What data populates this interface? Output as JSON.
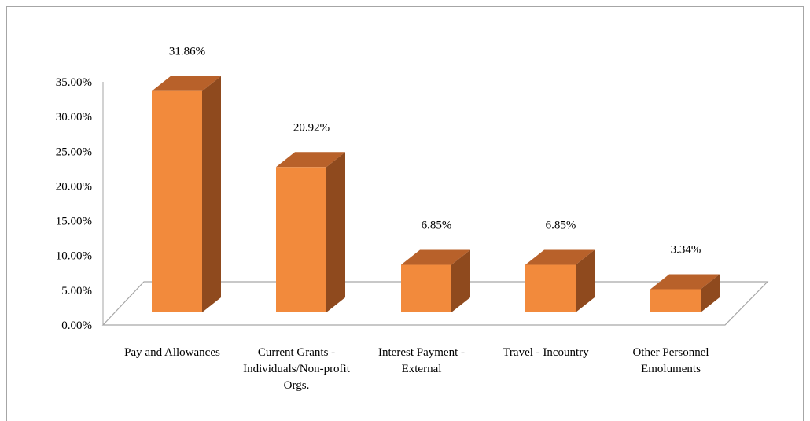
{
  "chart_data": {
    "type": "bar",
    "title": "",
    "xlabel": "",
    "ylabel": "",
    "ylim": [
      0,
      35
    ],
    "y_ticks": [
      "0.00%",
      "5.00%",
      "10.00%",
      "15.00%",
      "20.00%",
      "25.00%",
      "30.00%",
      "35.00%"
    ],
    "categories": [
      [
        "Pay and Allowances"
      ],
      [
        "Current Grants -",
        "Individuals/Non-profit",
        "Orgs."
      ],
      [
        "Interest Payment -",
        "External"
      ],
      [
        "Travel - Incountry"
      ],
      [
        "Other Personnel",
        "Emoluments"
      ]
    ],
    "values": [
      31.86,
      20.92,
      6.85,
      6.85,
      3.34
    ],
    "data_labels": [
      "31.86%",
      "20.92%",
      "6.85%",
      "6.85%",
      "3.34%"
    ],
    "colors": {
      "bar_front": "#f28a3c",
      "bar_top": "#b8612a",
      "bar_side": "#8f4a1e",
      "floor_line": "#a6a6a6",
      "axis": "#a6a6a6"
    },
    "grid": false,
    "legend": "none"
  }
}
